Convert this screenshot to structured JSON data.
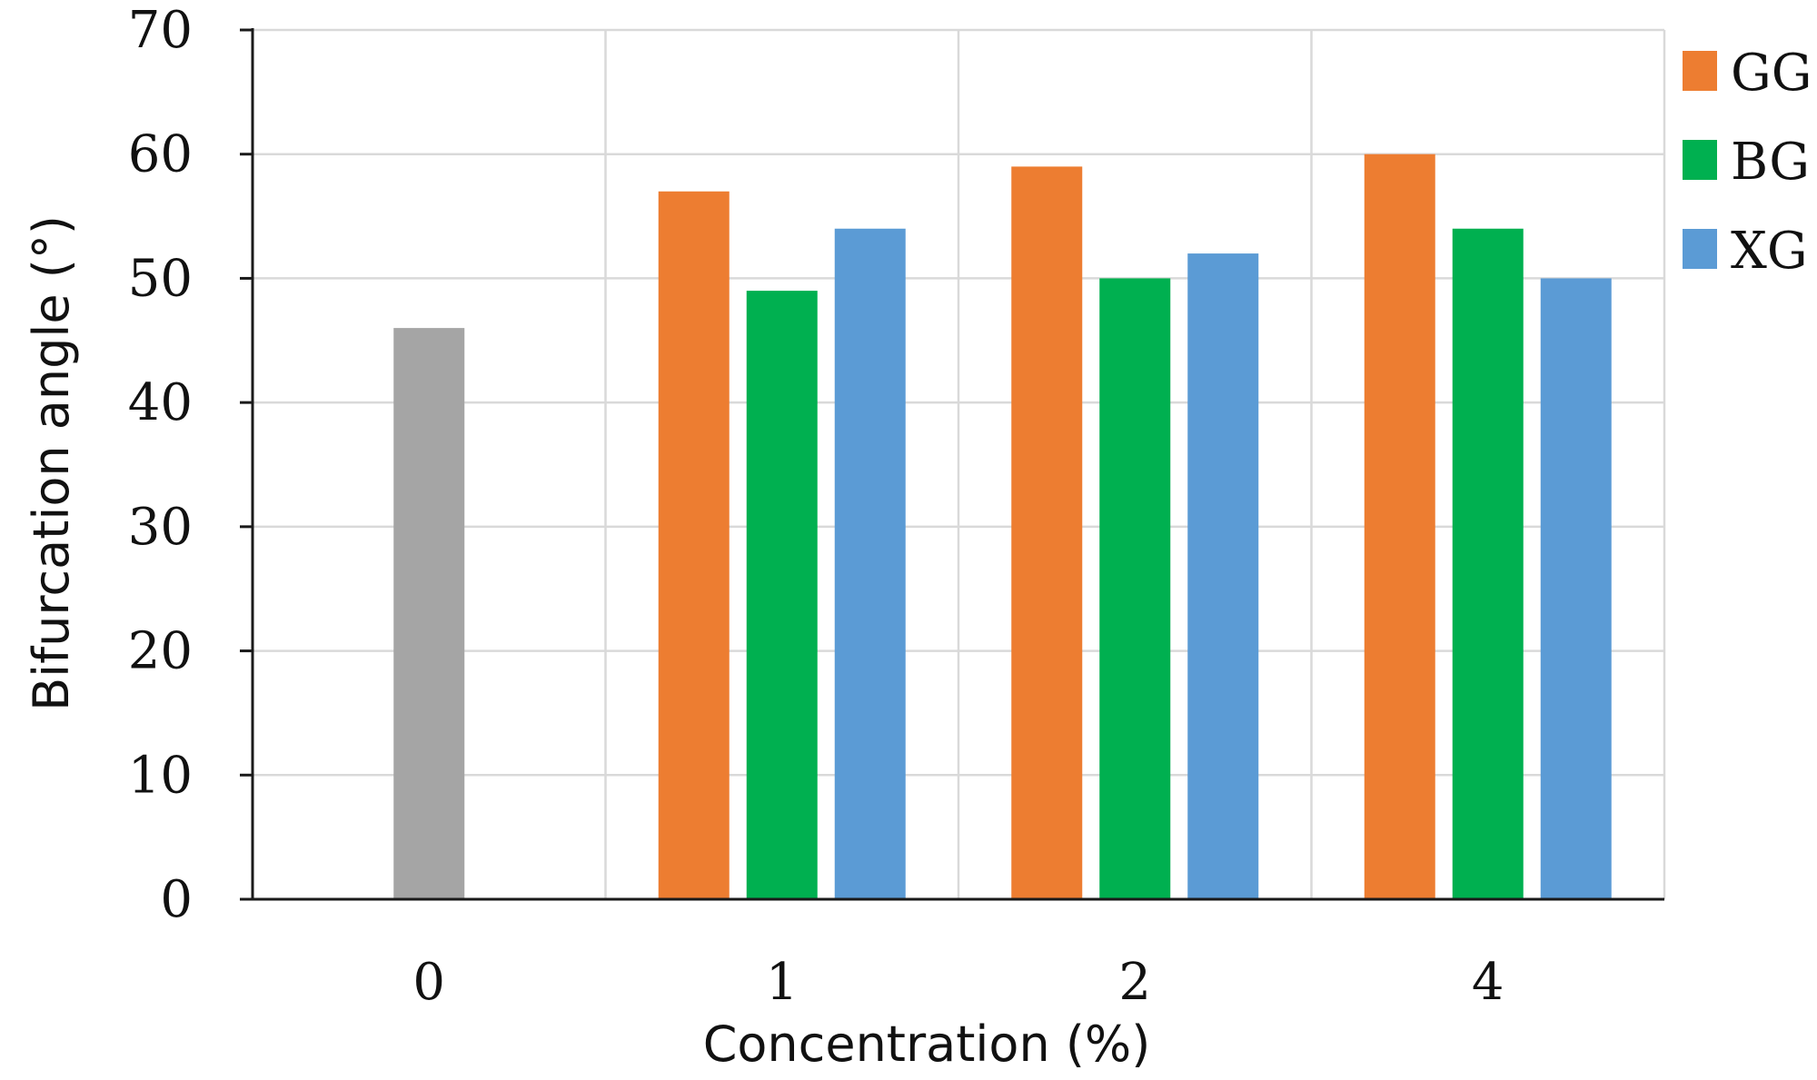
{
  "chart_data": {
    "type": "bar",
    "title": "",
    "xlabel": "Concentration (%)",
    "ylabel": "Bifurcation angle (°)",
    "ylim": [
      0,
      70
    ],
    "y_ticks": [
      0,
      10,
      20,
      30,
      40,
      50,
      60,
      70
    ],
    "categories": [
      "0",
      "1",
      "2",
      "4"
    ],
    "grid": true,
    "legend_position": "right",
    "series": [
      {
        "name": "",
        "color": "#a5a5a5",
        "values": [
          46,
          null,
          null,
          null
        ]
      },
      {
        "name": "GG",
        "color": "#ed7d31",
        "values": [
          null,
          57,
          59,
          60
        ]
      },
      {
        "name": "BG",
        "color": "#00b050",
        "values": [
          null,
          49,
          50,
          54
        ]
      },
      {
        "name": "XG",
        "color": "#5b9bd5",
        "values": [
          null,
          54,
          52,
          50
        ]
      }
    ]
  }
}
